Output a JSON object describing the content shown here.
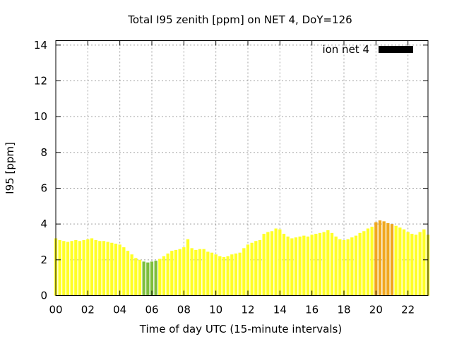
{
  "chart_data": {
    "type": "bar",
    "title": "Total I95 zenith [ppm] on NET 4, DoY=126",
    "xlabel": "Time of day UTC (15-minute intervals)",
    "ylabel": "I95 [ppm]",
    "xlim": [
      0,
      23.25
    ],
    "ylim": [
      0,
      14.25
    ],
    "x_ticks": [
      {
        "value": 0,
        "label": "00"
      },
      {
        "value": 2,
        "label": "02"
      },
      {
        "value": 4,
        "label": "04"
      },
      {
        "value": 6,
        "label": "06"
      },
      {
        "value": 8,
        "label": "08"
      },
      {
        "value": 10,
        "label": "10"
      },
      {
        "value": 12,
        "label": "12"
      },
      {
        "value": 14,
        "label": "14"
      },
      {
        "value": 16,
        "label": "16"
      },
      {
        "value": 18,
        "label": "18"
      },
      {
        "value": 20,
        "label": "20"
      },
      {
        "value": 22,
        "label": "22"
      }
    ],
    "y_ticks": [
      {
        "value": 0,
        "label": "0"
      },
      {
        "value": 2,
        "label": "2"
      },
      {
        "value": 4,
        "label": "4"
      },
      {
        "value": 6,
        "label": "6"
      },
      {
        "value": 8,
        "label": "8"
      },
      {
        "value": 10,
        "label": "10"
      },
      {
        "value": 12,
        "label": "12"
      },
      {
        "value": 14,
        "label": "14"
      }
    ],
    "grid": true,
    "legend": {
      "label": "ion net 4",
      "position": "top-right",
      "color": "#000000"
    },
    "bar_interval_hours": 0.25,
    "color_thresholds": [
      {
        "max": 2.0,
        "color": "#7dbe3c"
      },
      {
        "max": 4.0,
        "color": "#ffff26"
      },
      {
        "max": 99,
        "color": "#f0a81e"
      }
    ],
    "series": [
      {
        "start_hour": 0,
        "values": [
          3.2,
          3.1,
          3.05,
          3.0,
          3.05,
          3.1,
          3.05,
          3.1,
          3.15,
          3.2,
          3.1,
          3.05,
          3.05,
          3.0,
          2.95,
          2.9,
          2.85,
          2.7,
          2.5,
          2.3,
          2.1,
          2.0,
          1.9,
          1.85,
          1.9,
          1.95,
          2.05,
          2.2,
          2.35,
          2.5,
          2.55,
          2.6,
          2.7,
          3.15,
          2.65,
          2.55,
          2.6,
          2.6,
          2.45,
          2.4,
          2.3,
          2.2,
          2.15,
          2.2,
          2.3,
          2.35,
          2.4,
          2.65,
          2.85,
          2.95,
          3.05,
          3.1,
          3.45,
          3.55,
          3.6,
          3.75,
          3.7,
          3.45,
          3.3,
          3.2,
          3.25,
          3.3,
          3.35,
          3.3,
          3.4,
          3.45,
          3.5,
          3.55,
          3.65,
          3.5,
          3.3,
          3.15,
          3.1,
          3.15,
          3.25,
          3.35,
          3.5,
          3.6,
          3.75,
          3.85,
          4.1,
          4.2,
          4.15,
          4.05,
          4.0,
          3.9,
          3.8,
          3.7,
          3.55,
          3.45,
          3.4,
          3.55,
          3.7,
          3.4
        ]
      }
    ]
  }
}
